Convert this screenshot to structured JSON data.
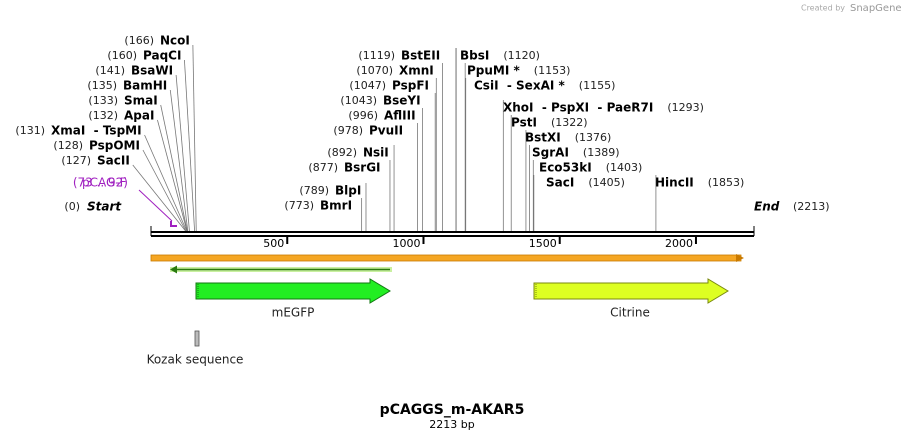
{
  "credit": {
    "prefix": "Created by",
    "brand": "SnapGene"
  },
  "title": "pCAGGS_m-AKAR5",
  "length_label": "2213 bp",
  "start": {
    "name": "Start",
    "site": 0,
    "site_label": "(0)"
  },
  "end": {
    "name": "End",
    "site": 2213,
    "site_label": "(2213)"
  },
  "ruler": {
    "ticks": [
      500,
      1000,
      1500,
      2000
    ]
  },
  "primers": [
    {
      "name": "pCAG-F",
      "range_label": "(73 .. 92)"
    }
  ],
  "enzymes": [
    {
      "name": "NcoI",
      "site": 166,
      "site_label": "(166)"
    },
    {
      "name": "PaqCI",
      "site": 160,
      "site_label": "(160)"
    },
    {
      "name": "BsaWI",
      "site": 141,
      "site_label": "(141)"
    },
    {
      "name": "BamHI",
      "site": 135,
      "site_label": "(135)"
    },
    {
      "name": "SmaI",
      "site": 133,
      "site_label": "(133)"
    },
    {
      "name": "ApaI",
      "site": 132,
      "site_label": "(132)"
    },
    {
      "name": "XmaI  - TspMI",
      "site": 131,
      "site_label": "(131)"
    },
    {
      "name": "PspOMI",
      "site": 128,
      "site_label": "(128)"
    },
    {
      "name": "SacII",
      "site": 127,
      "site_label": "(127)"
    },
    {
      "name": "BstEII",
      "site": 1119,
      "site_label": "(1119)"
    },
    {
      "name": "BbsI",
      "site": 1120,
      "site_label": "(1120)"
    },
    {
      "name": "XmnI",
      "site": 1070,
      "site_label": "(1070)"
    },
    {
      "name": "PpuMI *",
      "site": 1153,
      "site_label": "(1153)"
    },
    {
      "name": "PspFI",
      "site": 1047,
      "site_label": "(1047)"
    },
    {
      "name": "CsiI  - SexAI *",
      "site": 1155,
      "site_label": "(1155)"
    },
    {
      "name": "BseYI",
      "site": 1043,
      "site_label": "(1043)"
    },
    {
      "name": "AflIII",
      "site": 996,
      "site_label": "(996)"
    },
    {
      "name": "XhoI  - PspXI  - PaeR7I",
      "site": 1293,
      "site_label": "(1293)"
    },
    {
      "name": "PvuII",
      "site": 978,
      "site_label": "(978)"
    },
    {
      "name": "PstI",
      "site": 1322,
      "site_label": "(1322)"
    },
    {
      "name": "BstXI",
      "site": 1376,
      "site_label": "(1376)"
    },
    {
      "name": "NsiI",
      "site": 892,
      "site_label": "(892)"
    },
    {
      "name": "SgrAI",
      "site": 1389,
      "site_label": "(1389)"
    },
    {
      "name": "BsrGI",
      "site": 877,
      "site_label": "(877)"
    },
    {
      "name": "Eco53kI",
      "site": 1403,
      "site_label": "(1403)"
    },
    {
      "name": "SacI",
      "site": 1405,
      "site_label": "(1405)"
    },
    {
      "name": "HincII",
      "site": 1853,
      "site_label": "(1853)"
    },
    {
      "name": "BlpI",
      "site": 789,
      "site_label": "(789)"
    },
    {
      "name": "BmrI",
      "site": 773,
      "site_label": "(773)"
    }
  ],
  "features": [
    {
      "name": "mEGFP"
    },
    {
      "name": "Citrine"
    },
    {
      "name": "Kozak sequence"
    }
  ]
}
